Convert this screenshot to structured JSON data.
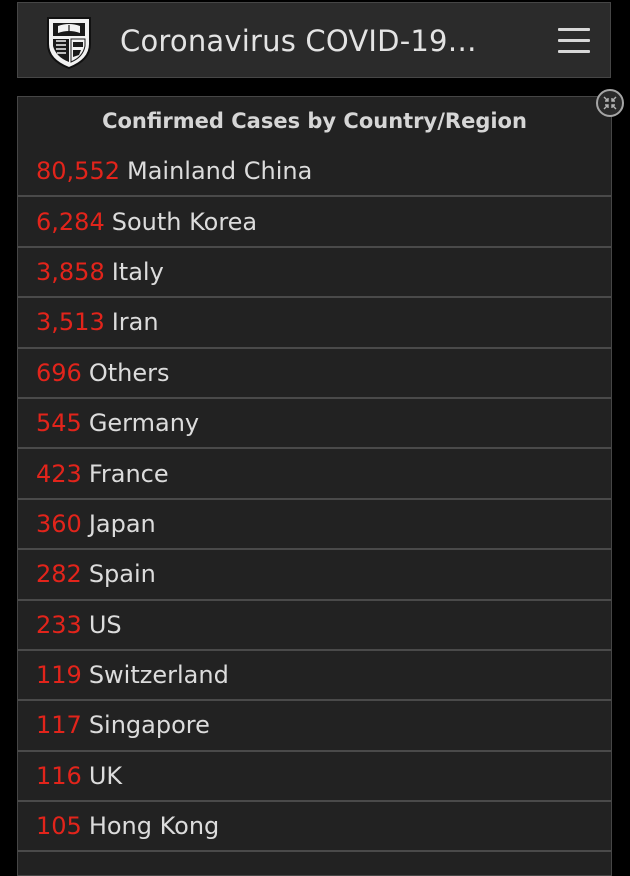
{
  "header": {
    "title": "Coronavirus COVID-19…",
    "logo_icon": "shield-logo-icon",
    "menu_icon": "hamburger-menu-icon"
  },
  "panel": {
    "title": "Confirmed Cases by Country/Region",
    "expand_icon": "collapse-arrows-icon",
    "rows": [
      {
        "count": "80,552",
        "country": "Mainland China"
      },
      {
        "count": "6,284",
        "country": "South Korea"
      },
      {
        "count": "3,858",
        "country": "Italy"
      },
      {
        "count": "3,513",
        "country": "Iran"
      },
      {
        "count": "696",
        "country": "Others"
      },
      {
        "count": "545",
        "country": "Germany"
      },
      {
        "count": "423",
        "country": "France"
      },
      {
        "count": "360",
        "country": "Japan"
      },
      {
        "count": "282",
        "country": "Spain"
      },
      {
        "count": "233",
        "country": "US"
      },
      {
        "count": "119",
        "country": "Switzerland"
      },
      {
        "count": "117",
        "country": "Singapore"
      },
      {
        "count": "116",
        "country": "UK"
      },
      {
        "count": "105",
        "country": "Hong Kong"
      }
    ]
  },
  "colors": {
    "count_red": "#e2241b",
    "panel_bg": "#222222",
    "header_bg": "#2b2b2b",
    "text": "#dcdcdc"
  }
}
